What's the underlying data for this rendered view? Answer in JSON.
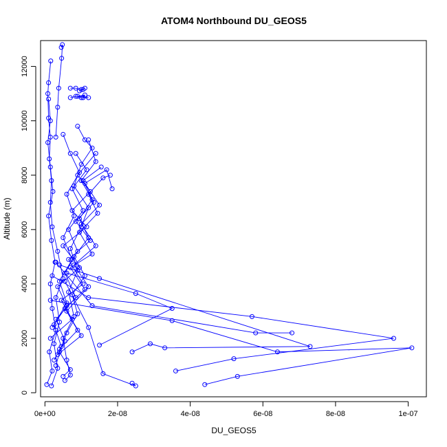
{
  "chart_data": {
    "type": "line",
    "title": "ATOM4 Northbound DU_GEOS5",
    "xlabel": "DU_GEOS5",
    "ylabel": "Altitude (m)",
    "xlim": [
      -1.2e-09,
      1.05e-07
    ],
    "ylim": [
      -150,
      12950
    ],
    "x_ticks": [
      {
        "value": 0,
        "label": "0e+00"
      },
      {
        "value": 2e-08,
        "label": "2e-08"
      },
      {
        "value": 4e-08,
        "label": "4e-08"
      },
      {
        "value": 6e-08,
        "label": "6e-08"
      },
      {
        "value": 8e-08,
        "label": "8e-08"
      },
      {
        "value": 1e-07,
        "label": "1e-07"
      }
    ],
    "y_ticks": [
      {
        "value": 0,
        "label": "0"
      },
      {
        "value": 2000,
        "label": "2000"
      },
      {
        "value": 4000,
        "label": "4000"
      },
      {
        "value": 6000,
        "label": "6000"
      },
      {
        "value": 8000,
        "label": "8000"
      },
      {
        "value": 10000,
        "label": "10000"
      },
      {
        "value": 12000,
        "label": "12000"
      }
    ],
    "color": "#0000ff",
    "marker": "open-circle",
    "grid": false,
    "series": [
      {
        "points": [
          [
            1.8e-09,
            250
          ],
          [
            3.5e-09,
            900
          ],
          [
            2.5e-09,
            1800
          ],
          [
            4e-09,
            2600
          ],
          [
            3e-09,
            3500
          ],
          [
            5e-09,
            4200
          ],
          [
            3.5e-09,
            5200
          ],
          [
            2e-09,
            6100
          ],
          [
            1.5e-09,
            7000
          ],
          [
            1.8e-09,
            7800
          ],
          [
            1.2e-09,
            8600
          ],
          [
            1.5e-09,
            9400
          ],
          [
            1e-09,
            10100
          ],
          [
            8e-10,
            11000
          ],
          [
            1e-09,
            11400
          ],
          [
            1.6e-09,
            12200
          ]
        ]
      },
      {
        "points": [
          [
            5e-10,
            300
          ],
          [
            2e-09,
            800
          ],
          [
            1.2e-09,
            1500
          ],
          [
            3e-09,
            2300
          ],
          [
            2e-09,
            3100
          ],
          [
            1.5e-09,
            4000
          ],
          [
            2.8e-09,
            4800
          ],
          [
            1.8e-09,
            5600
          ],
          [
            1e-09,
            6500
          ],
          [
            2.2e-09,
            7400
          ],
          [
            1.5e-09,
            8300
          ],
          [
            8e-10,
            9200
          ],
          [
            1.5e-09,
            10000
          ],
          [
            1e-09,
            10800
          ]
        ]
      },
      {
        "points": [
          [
            5.5e-09,
            450
          ],
          [
            7e-09,
            650
          ],
          [
            6e-09,
            1200
          ],
          [
            5e-09,
            2000
          ],
          [
            8e-09,
            2800
          ],
          [
            6.5e-09,
            3700
          ],
          [
            9e-09,
            4500
          ],
          [
            7e-09,
            5300
          ],
          [
            1e-08,
            6100
          ],
          [
            1.2e-08,
            6800
          ],
          [
            8e-09,
            7600
          ],
          [
            1e-08,
            8400
          ],
          [
            1.3e-08,
            9000
          ],
          [
            1.1e-08,
            9300
          ],
          [
            9e-09,
            9800
          ]
        ]
      },
      {
        "points": [
          [
            7e-09,
            10850
          ],
          [
            8.5e-09,
            10900
          ],
          [
            1e-08,
            10850
          ],
          [
            1.2e-08,
            10850
          ],
          [
            9e-09,
            10900
          ],
          [
            1.1e-08,
            10950
          ],
          [
            1.05e-08,
            10850
          ]
        ]
      },
      {
        "points": [
          [
            7e-09,
            11200
          ],
          [
            8.5e-09,
            11200
          ],
          [
            1e-08,
            11150
          ],
          [
            1.1e-08,
            11200
          ],
          [
            9.5e-09,
            11100
          ],
          [
            1.05e-08,
            11150
          ]
        ]
      },
      {
        "points": [
          [
            4.5e-09,
            12700
          ],
          [
            4.8e-09,
            12800
          ],
          [
            4.6e-09,
            12300
          ],
          [
            3.8e-09,
            11200
          ],
          [
            3.5e-09,
            10500
          ],
          [
            3e-09,
            9400
          ]
        ]
      },
      {
        "points": [
          [
            4.4e-08,
            300
          ],
          [
            5.3e-08,
            600
          ],
          [
            1.01e-07,
            1650
          ],
          [
            6.4e-08,
            1500
          ],
          [
            3.5e-08,
            2650
          ],
          [
            1.5e-09,
            3400
          ]
        ]
      },
      {
        "points": [
          [
            3.6e-08,
            800
          ],
          [
            5.2e-08,
            1250
          ],
          [
            9.6e-08,
            2000
          ],
          [
            5.7e-08,
            2800
          ],
          [
            1.2e-08,
            3500
          ],
          [
            2e-09,
            4300
          ]
        ]
      },
      {
        "points": [
          [
            1.5e-08,
            1750
          ],
          [
            3.5e-08,
            3100
          ],
          [
            2.5e-08,
            3650
          ],
          [
            6e-09,
            4400
          ]
        ]
      },
      {
        "points": [
          [
            2.4e-08,
            1500
          ],
          [
            2.9e-08,
            1800
          ],
          [
            3.3e-08,
            1650
          ],
          [
            7.3e-08,
            1700
          ],
          [
            1.5e-08,
            4200
          ],
          [
            4e-09,
            4700
          ]
        ]
      },
      {
        "points": [
          [
            2.4e-08,
            350
          ],
          [
            2.5e-08,
            250
          ],
          [
            1.6e-08,
            700
          ],
          [
            1.2e-08,
            2400
          ],
          [
            5.5e-09,
            4100
          ]
        ]
      },
      {
        "points": [
          [
            6.8e-08,
            2200
          ],
          [
            5.8e-08,
            2200
          ],
          [
            1.3e-08,
            3200
          ],
          [
            3e-09,
            4800
          ]
        ]
      },
      {
        "points": [
          [
            5e-09,
            600
          ],
          [
            7e-09,
            850
          ],
          [
            4e-09,
            1500
          ],
          [
            6e-09,
            2200
          ],
          [
            9e-09,
            2900
          ],
          [
            7.5e-09,
            3600
          ],
          [
            1.1e-08,
            4300
          ],
          [
            8e-09,
            5000
          ],
          [
            1.2e-08,
            5700
          ],
          [
            9.5e-09,
            6400
          ],
          [
            1.3e-08,
            7100
          ],
          [
            1e-08,
            7800
          ],
          [
            1.4e-08,
            8500
          ],
          [
            1.2e-08,
            9300
          ]
        ]
      },
      {
        "points": [
          [
            3e-09,
            1000
          ],
          [
            4.5e-09,
            1700
          ],
          [
            2.5e-09,
            2500
          ],
          [
            6e-09,
            3300
          ],
          [
            4e-09,
            4100
          ],
          [
            7.5e-09,
            4900
          ],
          [
            5e-09,
            5700
          ],
          [
            8e-09,
            6500
          ],
          [
            6e-09,
            7300
          ],
          [
            9.5e-09,
            8100
          ],
          [
            7e-09,
            8800
          ],
          [
            5e-09,
            9500
          ]
        ]
      },
      {
        "points": [
          [
            2.5e-09,
            1200
          ],
          [
            5.5e-09,
            1900
          ],
          [
            3e-09,
            2700
          ],
          [
            8.5e-09,
            3500
          ],
          [
            5.5e-09,
            4400
          ],
          [
            9e-09,
            5200
          ],
          [
            6.5e-09,
            6000
          ],
          [
            1.05e-08,
            6700
          ],
          [
            7.5e-09,
            7500
          ],
          [
            1.15e-08,
            8200
          ],
          [
            8.5e-09,
            8800
          ]
        ]
      },
      {
        "points": [
          [
            3.5e-09,
            1400
          ],
          [
            1e-08,
            2100
          ],
          [
            6e-09,
            3000
          ],
          [
            1.2e-08,
            3900
          ],
          [
            8e-09,
            4700
          ],
          [
            1.4e-08,
            5400
          ],
          [
            1e-08,
            6200
          ],
          [
            1.5e-08,
            6900
          ],
          [
            1.1e-08,
            7700
          ],
          [
            1.7e-08,
            8200
          ],
          [
            1.85e-08,
            7500
          ]
        ]
      },
      {
        "points": [
          [
            4e-09,
            1600
          ],
          [
            9e-09,
            2300
          ],
          [
            5.5e-09,
            3100
          ],
          [
            1.1e-08,
            3800
          ],
          [
            7e-09,
            4600
          ],
          [
            1.3e-08,
            5100
          ],
          [
            9.5e-09,
            5900
          ],
          [
            1.45e-08,
            6600
          ],
          [
            1.2e-08,
            7300
          ],
          [
            1.6e-08,
            7900
          ],
          [
            1.8e-08,
            8000
          ]
        ]
      },
      {
        "points": [
          [
            1.5e-09,
            2000
          ],
          [
            7.5e-09,
            2700
          ],
          [
            4.5e-09,
            3400
          ],
          [
            1.05e-08,
            4000
          ],
          [
            6.5e-09,
            4900
          ],
          [
            1.25e-08,
            5600
          ],
          [
            8.5e-09,
            6300
          ],
          [
            1.35e-08,
            7000
          ],
          [
            1.05e-08,
            7800
          ],
          [
            1.55e-08,
            8300
          ]
        ]
      },
      {
        "points": [
          [
            2e-09,
            2400
          ],
          [
            6e-09,
            3200
          ],
          [
            3.5e-09,
            3900
          ],
          [
            9.5e-09,
            4600
          ],
          [
            5e-09,
            5400
          ],
          [
            1.15e-08,
            6100
          ],
          [
            7.5e-09,
            6700
          ],
          [
            1.25e-08,
            7400
          ],
          [
            9e-09,
            8000
          ],
          [
            1.4e-08,
            8800
          ]
        ]
      }
    ]
  }
}
